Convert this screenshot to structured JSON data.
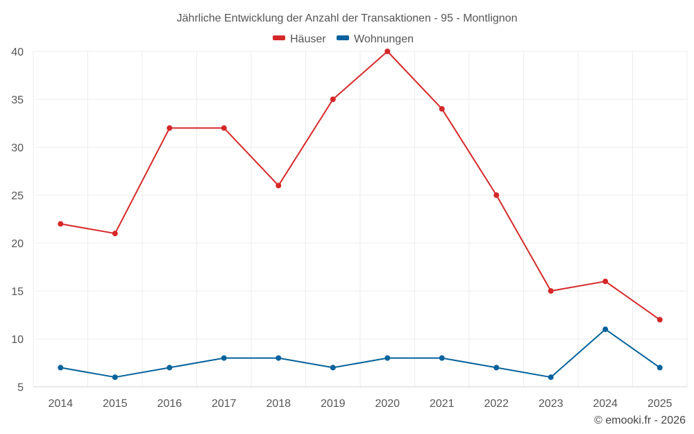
{
  "chart_data": {
    "type": "line",
    "title": "Jährliche Entwicklung der Anzahl der Transaktionen - 95 - Montlignon",
    "categories": [
      "2014",
      "2015",
      "2016",
      "2017",
      "2018",
      "2019",
      "2020",
      "2021",
      "2022",
      "2023",
      "2024",
      "2025"
    ],
    "series": [
      {
        "name": "Häuser",
        "color": "#d62728",
        "values": [
          22,
          21,
          32,
          32,
          26,
          35,
          40,
          34,
          25,
          15,
          16,
          12
        ]
      },
      {
        "name": "Wohnungen",
        "color": "#04629c",
        "values": [
          7,
          6,
          7,
          8,
          8,
          7,
          8,
          8,
          7,
          6,
          11,
          7
        ]
      }
    ],
    "ylim": [
      5,
      40
    ],
    "yticks": [
      "5",
      "10",
      "15",
      "20",
      "25",
      "30",
      "35",
      "40"
    ],
    "grid": true,
    "legend": "top-center",
    "xlabel": "",
    "ylabel": ""
  },
  "credit": "© emooki.fr - 2026"
}
